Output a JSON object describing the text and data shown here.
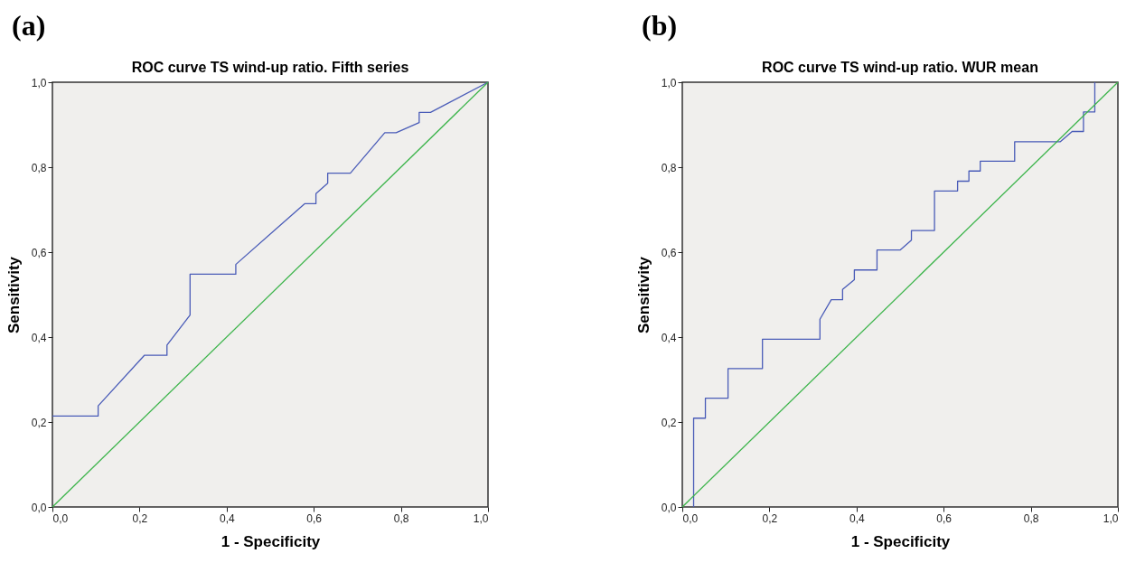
{
  "chart_data": [
    {
      "type": "line",
      "title": "ROC curve TS wind-up ratio. Fifth series",
      "xlabel": "1 - Specificity",
      "ylabel": "Sensitivity",
      "annotations": [
        "(a)"
      ],
      "xlim": [
        0,
        1
      ],
      "ylim": [
        0,
        1
      ],
      "xticks": [
        {
          "value": 0,
          "label": "0,0"
        },
        {
          "value": 0.2,
          "label": "0,2"
        },
        {
          "value": 0.4,
          "label": "0,4"
        },
        {
          "value": 0.6,
          "label": "0,6"
        },
        {
          "value": 0.8,
          "label": "0,8"
        },
        {
          "value": 1,
          "label": "1,0"
        }
      ],
      "yticks": [
        {
          "value": 0,
          "label": "0,0"
        },
        {
          "value": 0.2,
          "label": "0,2"
        },
        {
          "value": 0.4,
          "label": "0,4"
        },
        {
          "value": 0.6,
          "label": "0,6"
        },
        {
          "value": 0.8,
          "label": "0,8"
        },
        {
          "value": 1,
          "label": "1,0"
        }
      ],
      "grid": false,
      "marker": "none",
      "line_style": "solid",
      "series": [
        {
          "color": "#4a5cb8",
          "x": [
            0,
            0.105,
            0.105,
            0.211,
            0.263,
            0.263,
            0.316,
            0.316,
            0.421,
            0.421,
            0.579,
            0.605,
            0.605,
            0.632,
            0.632,
            0.684,
            0.763,
            0.789,
            0.842,
            0.842,
            0.868,
            1
          ],
          "values": [
            0.214,
            0.214,
            0.238,
            0.357,
            0.357,
            0.381,
            0.452,
            0.548,
            0.548,
            0.571,
            0.714,
            0.714,
            0.738,
            0.762,
            0.786,
            0.786,
            0.881,
            0.881,
            0.905,
            0.929,
            0.929,
            1
          ]
        },
        {
          "color": "#3cb44b",
          "x": [
            0,
            1
          ],
          "values": [
            0,
            1
          ]
        }
      ]
    },
    {
      "type": "line",
      "title": "ROC curve TS wind-up ratio. WUR mean",
      "xlabel": "1 - Specificity",
      "ylabel": "Sensitivity",
      "annotations": [
        "(b)"
      ],
      "xlim": [
        0,
        1
      ],
      "ylim": [
        0,
        1
      ],
      "xticks": [
        {
          "value": 0,
          "label": "0,0"
        },
        {
          "value": 0.2,
          "label": "0,2"
        },
        {
          "value": 0.4,
          "label": "0,4"
        },
        {
          "value": 0.6,
          "label": "0,6"
        },
        {
          "value": 0.8,
          "label": "0,8"
        },
        {
          "value": 1,
          "label": "1,0"
        }
      ],
      "yticks": [
        {
          "value": 0,
          "label": "0,0"
        },
        {
          "value": 0.2,
          "label": "0,2"
        },
        {
          "value": 0.4,
          "label": "0,4"
        },
        {
          "value": 0.6,
          "label": "0,6"
        },
        {
          "value": 0.8,
          "label": "0,8"
        },
        {
          "value": 1,
          "label": "1,0"
        }
      ],
      "grid": false,
      "marker": "none",
      "line_style": "solid",
      "series": [
        {
          "color": "#4a5cb8",
          "x": [
            0.026,
            0.026,
            0.053,
            0.053,
            0.105,
            0.105,
            0.184,
            0.184,
            0.316,
            0.316,
            0.342,
            0.368,
            0.368,
            0.395,
            0.395,
            0.447,
            0.447,
            0.5,
            0.526,
            0.526,
            0.579,
            0.579,
            0.632,
            0.632,
            0.658,
            0.658,
            0.684,
            0.684,
            0.763,
            0.763,
            0.868,
            0.895,
            0.921,
            0.921,
            0.947,
            0.947
          ],
          "values": [
            0,
            0.209,
            0.209,
            0.256,
            0.256,
            0.326,
            0.326,
            0.395,
            0.395,
            0.442,
            0.488,
            0.488,
            0.512,
            0.535,
            0.558,
            0.558,
            0.605,
            0.605,
            0.628,
            0.651,
            0.651,
            0.744,
            0.744,
            0.767,
            0.767,
            0.791,
            0.791,
            0.814,
            0.814,
            0.86,
            0.86,
            0.884,
            0.884,
            0.93,
            0.93,
            1
          ]
        },
        {
          "color": "#3cb44b",
          "x": [
            0,
            1
          ],
          "values": [
            0,
            1
          ]
        }
      ]
    }
  ]
}
